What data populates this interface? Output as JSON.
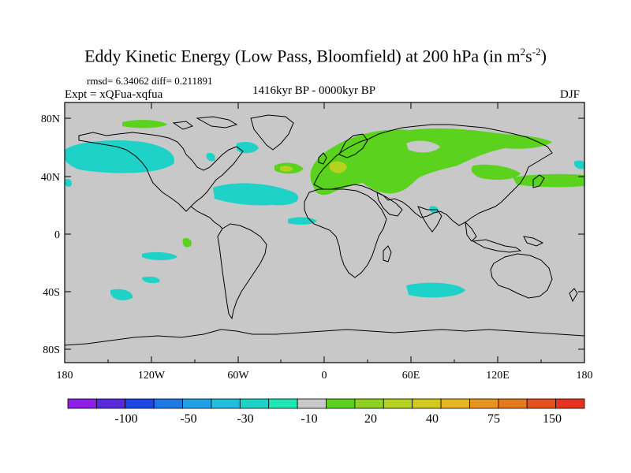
{
  "title": {
    "main": "Eddy Kinetic Energy (Low Pass, Bloomfield) at 200 hPa (in m",
    "sup1": "2",
    "mid": "s",
    "sup2": "-2",
    "end": ")"
  },
  "header": {
    "rmsd": "rmsd= 6.34062 diff= 0.211891",
    "expt": "Expt = xQFua-xqfua",
    "period": "1416kyr BP - 0000kyr BP",
    "season": "DJF"
  },
  "map": {
    "lon_ticks": [
      "180",
      "120W",
      "60W",
      "0",
      "60E",
      "120E",
      "180"
    ],
    "lat_ticks": [
      "80N",
      "40N",
      "0",
      "40S",
      "80S"
    ]
  },
  "colorbar": {
    "labels": [
      "-100",
      "-50",
      "-30",
      "-10",
      "20",
      "40",
      "75",
      "150"
    ],
    "colors": [
      "#8c1ee6",
      "#5a28dc",
      "#1e46e6",
      "#1e78e6",
      "#1ea0e6",
      "#1ebedc",
      "#1ed2c8",
      "#1ee6b4",
      "#c8c8c8",
      "#5ad21e",
      "#8cd21e",
      "#b4d21e",
      "#d2c81e",
      "#e6b41e",
      "#e6961e",
      "#e6781e",
      "#e6501e",
      "#e6321e"
    ]
  },
  "colors": {
    "background": "#c8c8c8",
    "negative_anomaly": "#1ed2c8",
    "positive_anomaly": "#5ad21e",
    "strong_positive": "#b4d21e"
  }
}
